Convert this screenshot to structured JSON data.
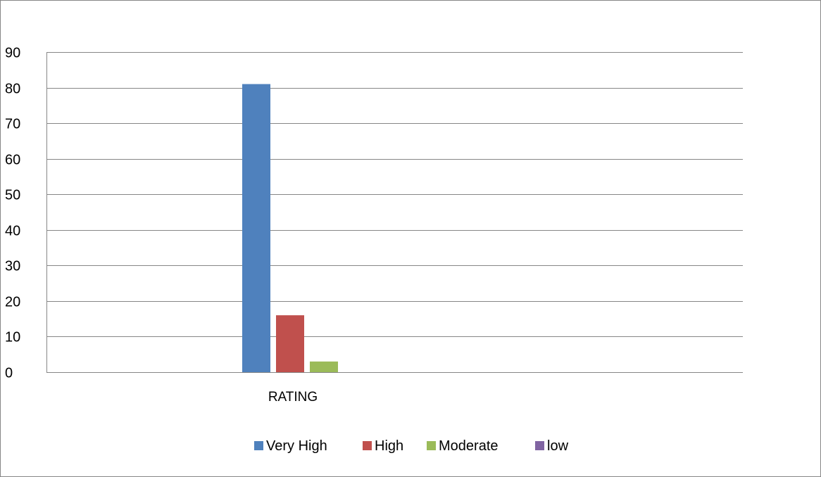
{
  "chart_data": {
    "type": "bar",
    "categories": [
      "RATING"
    ],
    "series": [
      {
        "name": "Very High",
        "values": [
          81
        ],
        "color": "#4F81BD"
      },
      {
        "name": "High",
        "values": [
          16
        ],
        "color": "#C0504D"
      },
      {
        "name": "Moderate",
        "values": [
          3
        ],
        "color": "#9BBB59"
      },
      {
        "name": "low",
        "values": [
          0
        ],
        "color": "#8064A2"
      }
    ],
    "ylim": [
      0,
      90
    ],
    "yticks": [
      0,
      10,
      20,
      30,
      40,
      50,
      60,
      70,
      80,
      90
    ],
    "grid": true,
    "legend": "bottom",
    "title": "",
    "xlabel": "",
    "ylabel": ""
  }
}
